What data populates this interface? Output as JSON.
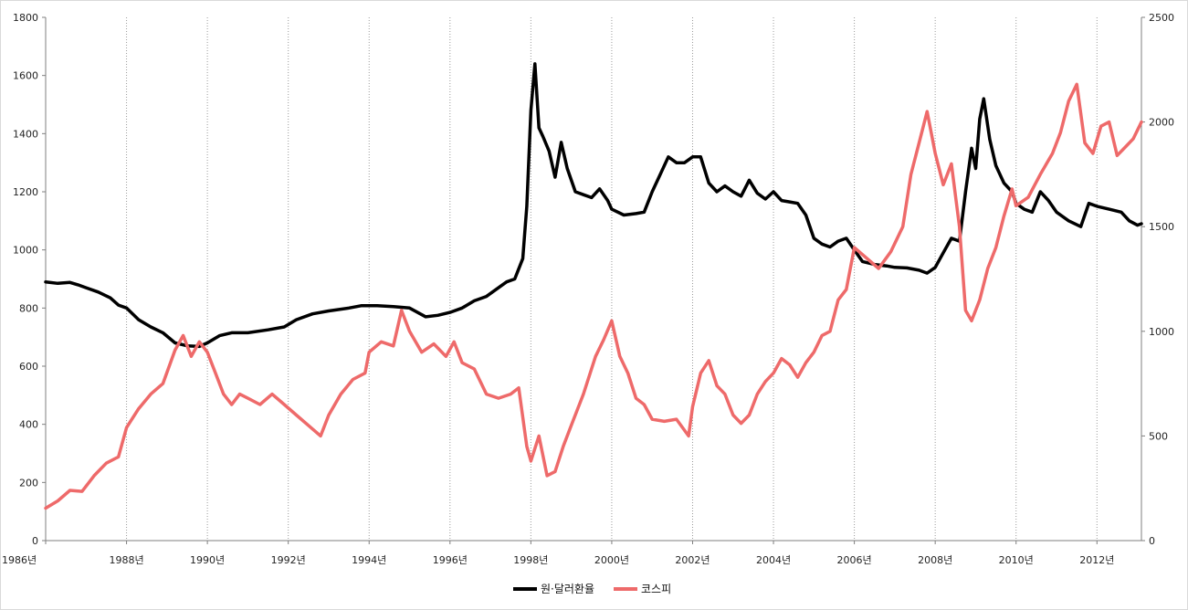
{
  "chart_data": {
    "type": "line",
    "title": "",
    "xlabel": "",
    "ylabel": "",
    "x_range": [
      1986,
      2013.1
    ],
    "x_ticks": [
      {
        "value": 1986,
        "label": "1986년"
      },
      {
        "value": 1988,
        "label": "1988년"
      },
      {
        "value": 1990,
        "label": "1990년"
      },
      {
        "value": 1992,
        "label": "1992년"
      },
      {
        "value": 1994,
        "label": "1994년"
      },
      {
        "value": 1996,
        "label": "1996년"
      },
      {
        "value": 1998,
        "label": "1998년"
      },
      {
        "value": 2000,
        "label": "2000년"
      },
      {
        "value": 2002,
        "label": "2002년"
      },
      {
        "value": 2004,
        "label": "2004년"
      },
      {
        "value": 2006,
        "label": "2006년"
      },
      {
        "value": 2008,
        "label": "2008년"
      },
      {
        "value": 2010,
        "label": "2010년"
      },
      {
        "value": 2012,
        "label": "2012년"
      }
    ],
    "y_left": {
      "min": 0,
      "max": 1800,
      "ticks": [
        0,
        200,
        400,
        600,
        800,
        1000,
        1200,
        1400,
        1600,
        1800
      ]
    },
    "y_right": {
      "min": 0,
      "max": 2500,
      "ticks": [
        0,
        500,
        1000,
        1500,
        2000,
        2500
      ]
    },
    "vertical_grid": true,
    "legend_position": "bottom",
    "series": [
      {
        "name": "원·달러환율",
        "axis": "left",
        "color": "#000000",
        "points": [
          [
            1986.0,
            890
          ],
          [
            1986.3,
            885
          ],
          [
            1986.6,
            888
          ],
          [
            1986.8,
            880
          ],
          [
            1987.0,
            870
          ],
          [
            1987.3,
            855
          ],
          [
            1987.6,
            835
          ],
          [
            1987.8,
            810
          ],
          [
            1988.0,
            800
          ],
          [
            1988.3,
            760
          ],
          [
            1988.6,
            735
          ],
          [
            1988.9,
            715
          ],
          [
            1989.2,
            680
          ],
          [
            1989.5,
            670
          ],
          [
            1989.8,
            668
          ],
          [
            1990.0,
            680
          ],
          [
            1990.3,
            705
          ],
          [
            1990.6,
            715
          ],
          [
            1991.0,
            715
          ],
          [
            1991.5,
            725
          ],
          [
            1991.9,
            735
          ],
          [
            1992.2,
            760
          ],
          [
            1992.6,
            780
          ],
          [
            1993.0,
            790
          ],
          [
            1993.5,
            800
          ],
          [
            1993.8,
            808
          ],
          [
            1994.2,
            808
          ],
          [
            1994.6,
            805
          ],
          [
            1995.0,
            800
          ],
          [
            1995.4,
            770
          ],
          [
            1995.7,
            775
          ],
          [
            1996.0,
            785
          ],
          [
            1996.3,
            800
          ],
          [
            1996.6,
            825
          ],
          [
            1996.9,
            840
          ],
          [
            1997.2,
            870
          ],
          [
            1997.4,
            890
          ],
          [
            1997.6,
            900
          ],
          [
            1997.8,
            970
          ],
          [
            1997.9,
            1150
          ],
          [
            1998.0,
            1480
          ],
          [
            1998.1,
            1640
          ],
          [
            1998.2,
            1420
          ],
          [
            1998.3,
            1390
          ],
          [
            1998.45,
            1340
          ],
          [
            1998.6,
            1250
          ],
          [
            1998.75,
            1370
          ],
          [
            1998.9,
            1280
          ],
          [
            1999.1,
            1200
          ],
          [
            1999.3,
            1190
          ],
          [
            1999.5,
            1180
          ],
          [
            1999.7,
            1210
          ],
          [
            1999.9,
            1170
          ],
          [
            2000.0,
            1140
          ],
          [
            2000.3,
            1120
          ],
          [
            2000.6,
            1125
          ],
          [
            2000.8,
            1130
          ],
          [
            2001.0,
            1200
          ],
          [
            2001.2,
            1260
          ],
          [
            2001.4,
            1320
          ],
          [
            2001.6,
            1300
          ],
          [
            2001.8,
            1300
          ],
          [
            2002.0,
            1320
          ],
          [
            2002.2,
            1320
          ],
          [
            2002.4,
            1230
          ],
          [
            2002.6,
            1200
          ],
          [
            2002.8,
            1220
          ],
          [
            2003.0,
            1200
          ],
          [
            2003.2,
            1185
          ],
          [
            2003.4,
            1240
          ],
          [
            2003.6,
            1195
          ],
          [
            2003.8,
            1175
          ],
          [
            2004.0,
            1200
          ],
          [
            2004.2,
            1170
          ],
          [
            2004.4,
            1165
          ],
          [
            2004.6,
            1160
          ],
          [
            2004.8,
            1120
          ],
          [
            2005.0,
            1040
          ],
          [
            2005.2,
            1020
          ],
          [
            2005.4,
            1010
          ],
          [
            2005.6,
            1030
          ],
          [
            2005.8,
            1040
          ],
          [
            2006.0,
            1000
          ],
          [
            2006.2,
            960
          ],
          [
            2006.5,
            950
          ],
          [
            2006.8,
            945
          ],
          [
            2007.0,
            940
          ],
          [
            2007.3,
            938
          ],
          [
            2007.6,
            930
          ],
          [
            2007.8,
            920
          ],
          [
            2008.0,
            940
          ],
          [
            2008.2,
            990
          ],
          [
            2008.4,
            1040
          ],
          [
            2008.6,
            1030
          ],
          [
            2008.75,
            1200
          ],
          [
            2008.9,
            1350
          ],
          [
            2009.0,
            1280
          ],
          [
            2009.1,
            1450
          ],
          [
            2009.2,
            1520
          ],
          [
            2009.35,
            1380
          ],
          [
            2009.5,
            1290
          ],
          [
            2009.7,
            1230
          ],
          [
            2009.9,
            1200
          ],
          [
            2010.0,
            1160
          ],
          [
            2010.2,
            1140
          ],
          [
            2010.4,
            1130
          ],
          [
            2010.6,
            1200
          ],
          [
            2010.8,
            1170
          ],
          [
            2011.0,
            1130
          ],
          [
            2011.3,
            1100
          ],
          [
            2011.6,
            1080
          ],
          [
            2011.8,
            1160
          ],
          [
            2012.0,
            1150
          ],
          [
            2012.3,
            1140
          ],
          [
            2012.6,
            1130
          ],
          [
            2012.8,
            1100
          ],
          [
            2013.0,
            1085
          ],
          [
            2013.1,
            1090
          ]
        ]
      },
      {
        "name": "코스피",
        "axis": "right",
        "color": "#ee6a6a",
        "points": [
          [
            1986.0,
            155
          ],
          [
            1986.3,
            190
          ],
          [
            1986.6,
            240
          ],
          [
            1986.9,
            235
          ],
          [
            1987.2,
            310
          ],
          [
            1987.5,
            370
          ],
          [
            1987.8,
            400
          ],
          [
            1988.0,
            540
          ],
          [
            1988.3,
            630
          ],
          [
            1988.6,
            700
          ],
          [
            1988.9,
            750
          ],
          [
            1989.2,
            910
          ],
          [
            1989.4,
            980
          ],
          [
            1989.6,
            880
          ],
          [
            1989.8,
            950
          ],
          [
            1990.0,
            900
          ],
          [
            1990.2,
            800
          ],
          [
            1990.4,
            700
          ],
          [
            1990.6,
            650
          ],
          [
            1990.8,
            700
          ],
          [
            1991.0,
            680
          ],
          [
            1991.3,
            650
          ],
          [
            1991.6,
            700
          ],
          [
            1991.9,
            650
          ],
          [
            1992.2,
            600
          ],
          [
            1992.5,
            550
          ],
          [
            1992.8,
            500
          ],
          [
            1993.0,
            600
          ],
          [
            1993.3,
            700
          ],
          [
            1993.6,
            770
          ],
          [
            1993.9,
            800
          ],
          [
            1994.0,
            900
          ],
          [
            1994.3,
            950
          ],
          [
            1994.6,
            930
          ],
          [
            1994.8,
            1100
          ],
          [
            1995.0,
            1000
          ],
          [
            1995.3,
            900
          ],
          [
            1995.6,
            940
          ],
          [
            1995.9,
            880
          ],
          [
            1996.1,
            950
          ],
          [
            1996.3,
            850
          ],
          [
            1996.6,
            820
          ],
          [
            1996.9,
            700
          ],
          [
            1997.2,
            680
          ],
          [
            1997.5,
            700
          ],
          [
            1997.7,
            730
          ],
          [
            1997.9,
            450
          ],
          [
            1998.0,
            380
          ],
          [
            1998.2,
            500
          ],
          [
            1998.4,
            310
          ],
          [
            1998.6,
            330
          ],
          [
            1998.8,
            450
          ],
          [
            1999.0,
            550
          ],
          [
            1999.3,
            700
          ],
          [
            1999.6,
            880
          ],
          [
            1999.8,
            960
          ],
          [
            2000.0,
            1050
          ],
          [
            2000.2,
            880
          ],
          [
            2000.4,
            800
          ],
          [
            2000.6,
            680
          ],
          [
            2000.8,
            650
          ],
          [
            2001.0,
            580
          ],
          [
            2001.3,
            570
          ],
          [
            2001.6,
            580
          ],
          [
            2001.9,
            500
          ],
          [
            2002.0,
            640
          ],
          [
            2002.2,
            800
          ],
          [
            2002.4,
            860
          ],
          [
            2002.6,
            740
          ],
          [
            2002.8,
            700
          ],
          [
            2003.0,
            600
          ],
          [
            2003.2,
            560
          ],
          [
            2003.4,
            600
          ],
          [
            2003.6,
            700
          ],
          [
            2003.8,
            760
          ],
          [
            2004.0,
            800
          ],
          [
            2004.2,
            870
          ],
          [
            2004.4,
            840
          ],
          [
            2004.6,
            780
          ],
          [
            2004.8,
            850
          ],
          [
            2005.0,
            900
          ],
          [
            2005.2,
            980
          ],
          [
            2005.4,
            1000
          ],
          [
            2005.6,
            1150
          ],
          [
            2005.8,
            1200
          ],
          [
            2006.0,
            1400
          ],
          [
            2006.3,
            1350
          ],
          [
            2006.6,
            1300
          ],
          [
            2006.9,
            1380
          ],
          [
            2007.2,
            1500
          ],
          [
            2007.4,
            1750
          ],
          [
            2007.6,
            1900
          ],
          [
            2007.8,
            2050
          ],
          [
            2008.0,
            1850
          ],
          [
            2008.2,
            1700
          ],
          [
            2008.4,
            1800
          ],
          [
            2008.6,
            1500
          ],
          [
            2008.75,
            1100
          ],
          [
            2008.9,
            1050
          ],
          [
            2009.1,
            1150
          ],
          [
            2009.3,
            1300
          ],
          [
            2009.5,
            1400
          ],
          [
            2009.7,
            1550
          ],
          [
            2009.9,
            1680
          ],
          [
            2010.0,
            1600
          ],
          [
            2010.3,
            1640
          ],
          [
            2010.6,
            1750
          ],
          [
            2010.9,
            1850
          ],
          [
            2011.1,
            1950
          ],
          [
            2011.3,
            2100
          ],
          [
            2011.5,
            2180
          ],
          [
            2011.7,
            1900
          ],
          [
            2011.9,
            1850
          ],
          [
            2012.1,
            1980
          ],
          [
            2012.3,
            2000
          ],
          [
            2012.5,
            1840
          ],
          [
            2012.7,
            1880
          ],
          [
            2012.9,
            1920
          ],
          [
            2013.1,
            2000
          ]
        ]
      }
    ]
  }
}
